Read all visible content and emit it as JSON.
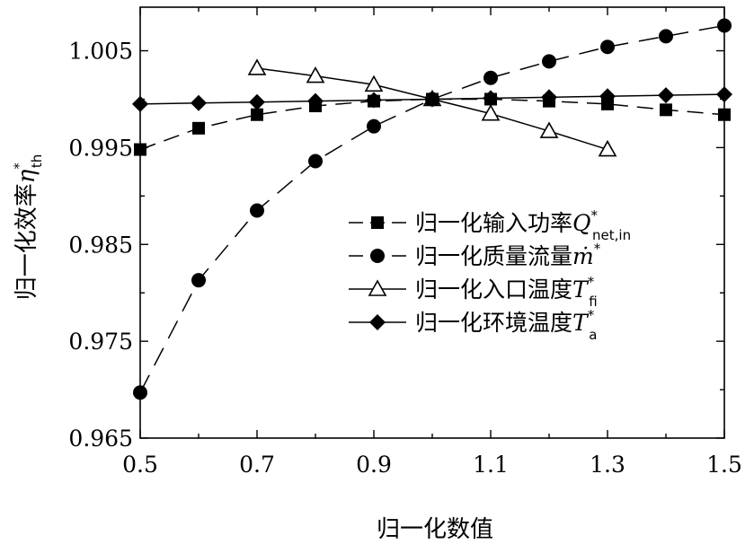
{
  "chart_data": {
    "type": "line",
    "xlabel": "归一化数值",
    "ylabel": "归一化效率",
    "ylabel_symbol": "η",
    "ylabel_sup": "*",
    "ylabel_sub": "th",
    "xlim": [
      0.5,
      1.5
    ],
    "ylim": [
      0.965,
      1.0095
    ],
    "x_ticks": [
      "0.5",
      "0.7",
      "0.9",
      "1.1",
      "1.3",
      "1.5"
    ],
    "y_ticks": [
      "0.965",
      "0.975",
      "0.985",
      "0.995",
      "1.005"
    ],
    "x_tick_values": [
      0.5,
      0.7,
      0.9,
      1.1,
      1.3,
      1.5
    ],
    "y_tick_values": [
      0.965,
      0.975,
      0.985,
      0.995,
      1.005
    ],
    "legend_position": "center-right",
    "grid": false,
    "series": [
      {
        "name": "归一化输入功率",
        "symbol": "Q",
        "sup": "*",
        "sub": "net,in",
        "marker": "square",
        "line": "dashed",
        "x": [
          0.5,
          0.6,
          0.7,
          0.8,
          0.9,
          1.0,
          1.1,
          1.2,
          1.3,
          1.4,
          1.5
        ],
        "y": [
          0.9948,
          0.997,
          0.9984,
          0.9993,
          0.9998,
          1.0,
          1.0,
          0.9998,
          0.9995,
          0.9989,
          0.9984
        ]
      },
      {
        "name": "归一化质量流量",
        "symbol": "ṁ",
        "sup": "*",
        "sub": "",
        "marker": "circle",
        "line": "dashed",
        "x": [
          0.5,
          0.6,
          0.7,
          0.8,
          0.9,
          1.0,
          1.1,
          1.2,
          1.3,
          1.4,
          1.5
        ],
        "y": [
          0.9697,
          0.9813,
          0.9885,
          0.9936,
          0.9972,
          1.0,
          1.0022,
          1.0039,
          1.0054,
          1.0065,
          1.0076
        ]
      },
      {
        "name": "归一化入口温度",
        "symbol": "T",
        "sup": "*",
        "sub": "fi",
        "marker": "triangle-open",
        "line": "solid",
        "x": [
          0.7,
          0.8,
          0.9,
          1.0,
          1.1,
          1.2,
          1.3
        ],
        "y": [
          1.0032,
          1.0024,
          1.0015,
          1.0,
          0.9985,
          0.9967,
          0.9948
        ]
      },
      {
        "name": "归一化环境温度",
        "symbol": "T",
        "sup": "*",
        "sub": "a",
        "marker": "diamond",
        "line": "solid",
        "x": [
          0.5,
          0.6,
          0.7,
          0.8,
          0.9,
          1.0,
          1.1,
          1.2,
          1.3,
          1.4,
          1.5
        ],
        "y": [
          0.9995,
          0.9996,
          0.9997,
          0.9998,
          0.9999,
          1.0,
          1.0001,
          1.0002,
          1.0003,
          1.0004,
          1.0005
        ]
      }
    ]
  }
}
